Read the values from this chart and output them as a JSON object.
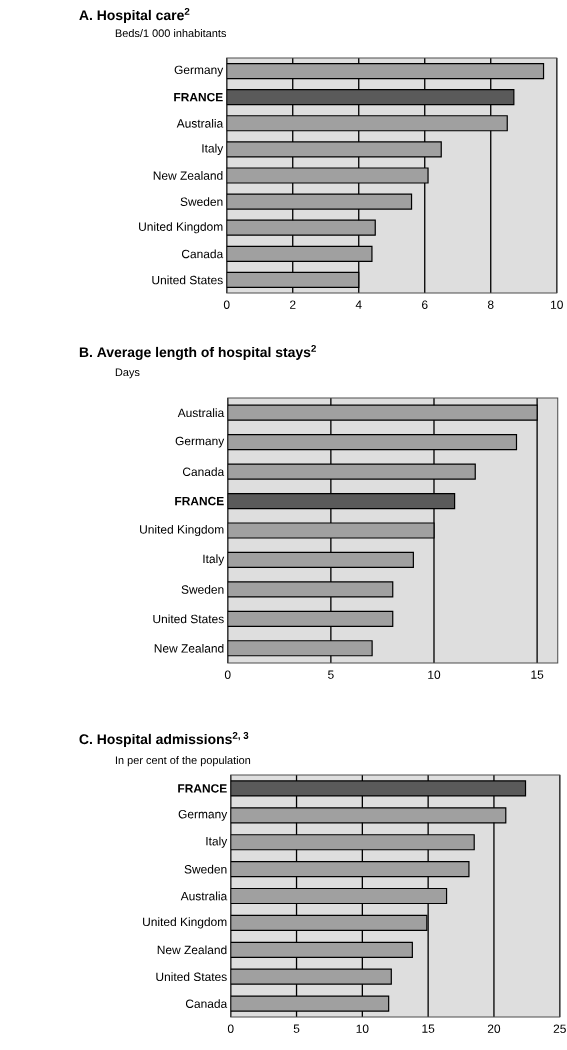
{
  "chart_data": [
    {
      "type": "bar",
      "orientation": "horizontal",
      "title": "A. Hospital care$^{2}$",
      "subtitle": "Beds/1 000 inhabitants",
      "categories": [
        "Germany",
        "**FRANCE**",
        "Australia",
        "Italy",
        "New Zealand",
        "Sweden",
        "United Kingdom",
        "Canada",
        "United States"
      ],
      "values": [
        9.6,
        8.7,
        8.5,
        6.5,
        6.1,
        5.6,
        4.5,
        4.4,
        4.0
      ],
      "colors": [
        "#a0a0a0",
        "#5a5a5a",
        "#a0a0a0",
        "#a0a0a0",
        "#a0a0a0",
        "#a0a0a0",
        "#a0a0a0",
        "#a0a0a0",
        "#a0a0a0"
      ],
      "xlim": [
        0,
        10
      ],
      "xticks": [
        0,
        2,
        4,
        6,
        8,
        10
      ],
      "grid": "x"
    },
    {
      "type": "bar",
      "orientation": "horizontal",
      "title": "B. Average length of hospital stays$^{2}$",
      "subtitle": "Days",
      "categories": [
        "Australia",
        "Germany",
        "Canada",
        "**FRANCE**",
        "United Kingdom",
        "Italy",
        "Sweden",
        "United States",
        "New Zealand"
      ],
      "values": [
        15,
        14,
        12,
        11,
        10,
        9,
        8,
        8,
        7
      ],
      "colors": [
        "#a0a0a0",
        "#a0a0a0",
        "#a0a0a0",
        "#5a5a5a",
        "#a0a0a0",
        "#a0a0a0",
        "#a0a0a0",
        "#a0a0a0",
        "#a0a0a0"
      ],
      "xlim": [
        0,
        16
      ],
      "xticks": [
        0,
        5,
        10,
        15
      ],
      "grid": "x"
    },
    {
      "type": "bar",
      "orientation": "horizontal",
      "title": "C. Hospital admissions$^{2, 3}$",
      "subtitle": "In per cent of the population",
      "categories": [
        "**FRANCE**",
        "Germany",
        "Italy",
        "Sweden",
        "Australia",
        "United Kingdom",
        "New Zealand",
        "United States",
        "Canada"
      ],
      "values": [
        22.4,
        20.9,
        18.5,
        18.1,
        16.4,
        14.9,
        13.8,
        12.2,
        12.0
      ],
      "colors": [
        "#5a5a5a",
        "#a0a0a0",
        "#a0a0a0",
        "#a0a0a0",
        "#a0a0a0",
        "#a0a0a0",
        "#a0a0a0",
        "#a0a0a0",
        "#a0a0a0"
      ],
      "xlim": [
        0,
        25
      ],
      "xticks": [
        0,
        5,
        10,
        15,
        20,
        25
      ],
      "grid": "x"
    }
  ]
}
